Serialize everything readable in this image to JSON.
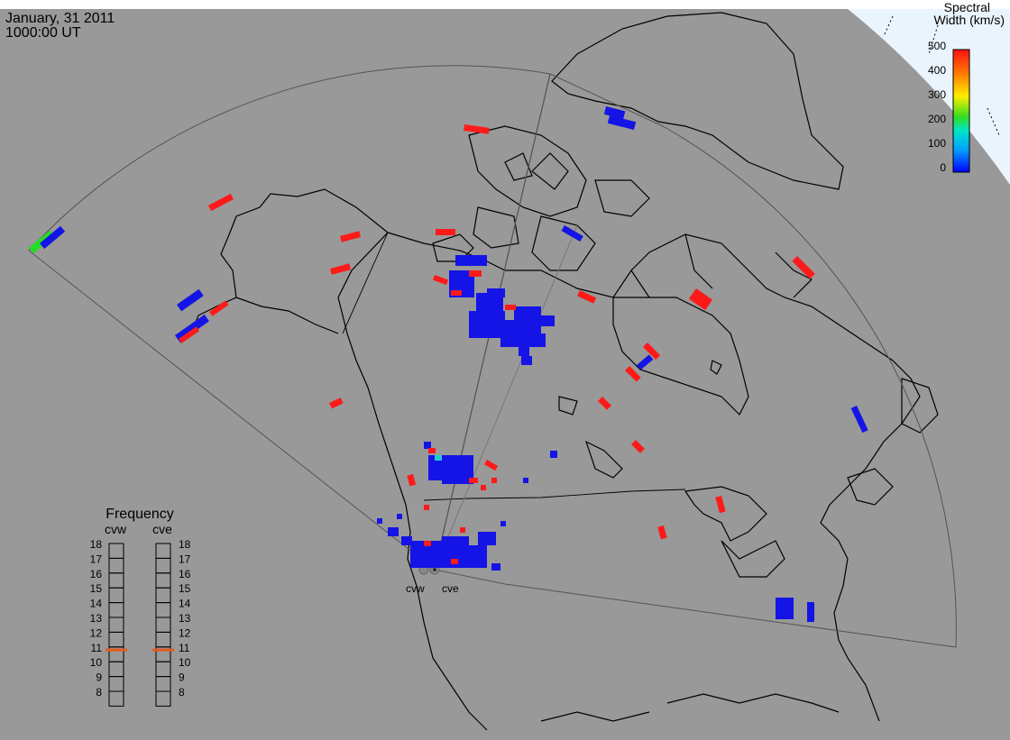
{
  "header": {
    "date": "January, 31 2011",
    "time": "1000:00 UT"
  },
  "colorbar": {
    "title_line1": "Spectral",
    "title_line2": "Width (km/s)",
    "ticks": [
      "500",
      "400",
      "300",
      "200",
      "100",
      "0"
    ]
  },
  "radars": {
    "west": "cvw",
    "east": "cve"
  },
  "frequency_panel": {
    "title": "Frequency",
    "col_west": "cvw",
    "col_east": "cve",
    "scale": [
      "18",
      "17",
      "16",
      "15",
      "14",
      "13",
      "12",
      "11",
      "10",
      "9",
      "8"
    ],
    "value_west_mhz": 10.8,
    "value_east_mhz": 10.8
  },
  "colors": {
    "background": "#999999",
    "land_outline": "#000000",
    "ocean_corner": "#eaf4fc",
    "scatter_low": "#1414e6",
    "scatter_high": "#ff1a1a",
    "scatter_mid": "#22dd22",
    "frequency_marker": "#e85a1e"
  }
}
